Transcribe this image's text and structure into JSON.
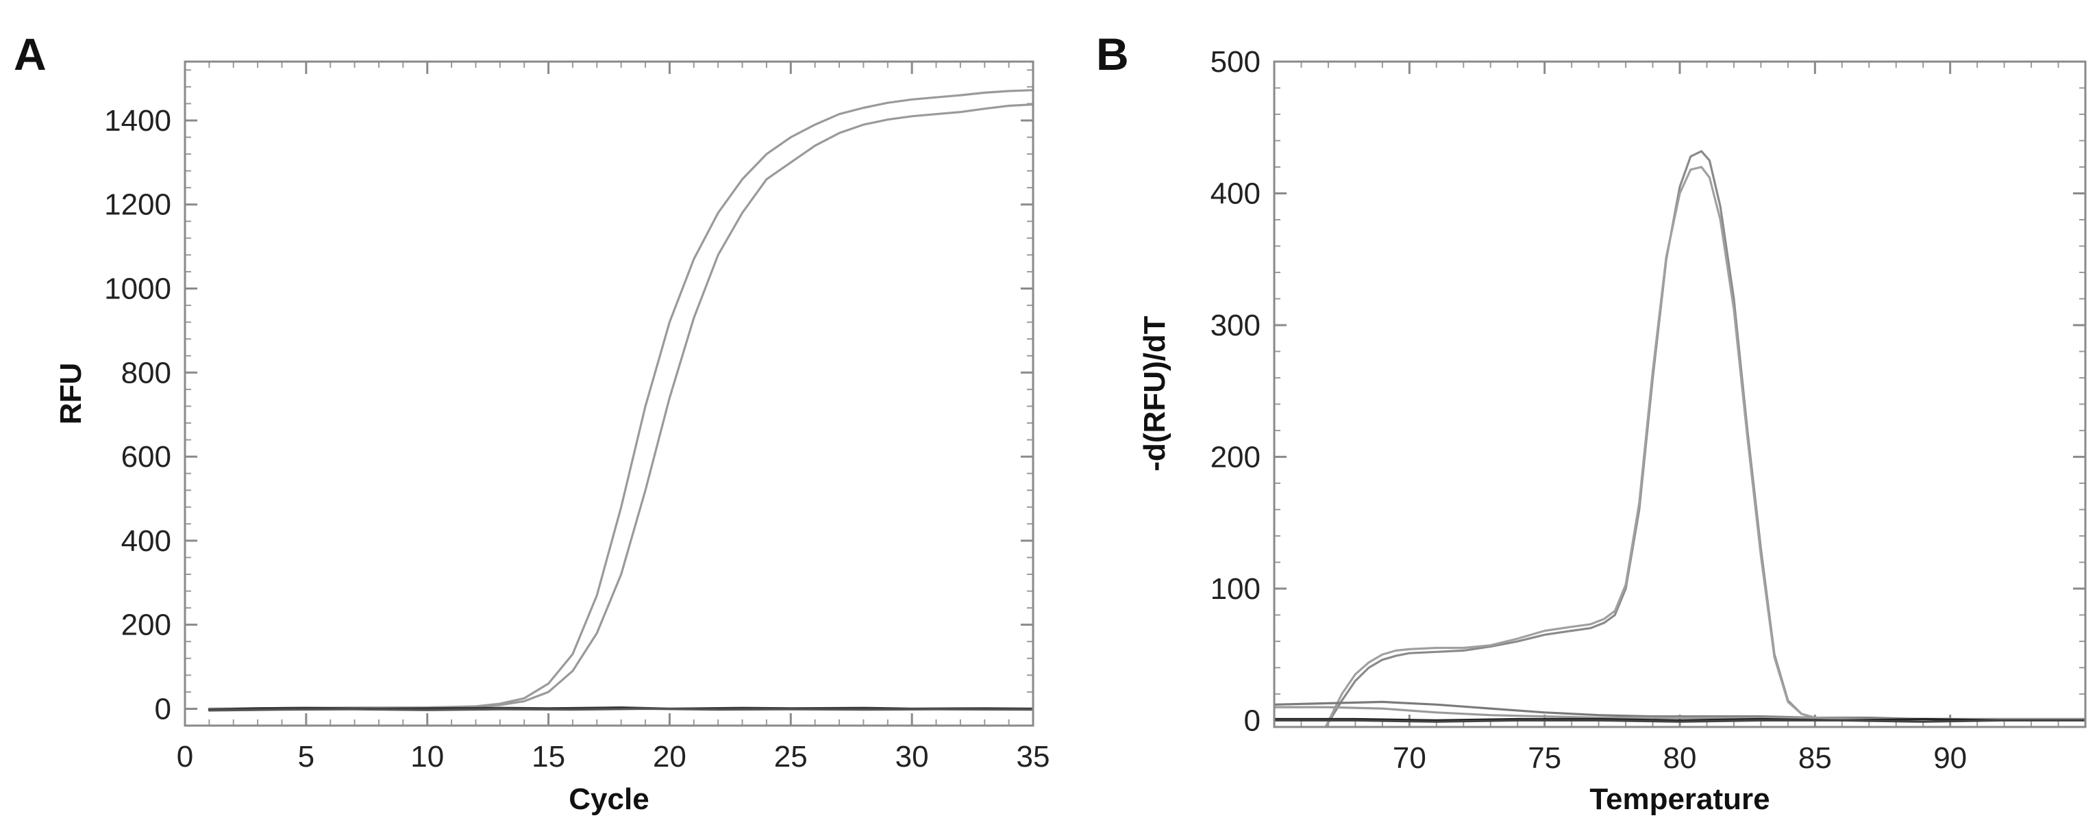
{
  "chart_data": [
    {
      "panel": "A",
      "type": "line",
      "xlabel": "Cycle",
      "ylabel": "RFU",
      "xlim": [
        0,
        35
      ],
      "ylim": [
        -40,
        1540
      ],
      "xticks": [
        0,
        5,
        10,
        15,
        20,
        25,
        30,
        35
      ],
      "yticks": [
        0,
        200,
        400,
        600,
        800,
        1000,
        1200,
        1400
      ],
      "grid": false,
      "series": [
        {
          "color": "#9a9a9a",
          "x": [
            1,
            5,
            10,
            12,
            13,
            14,
            15,
            16,
            17,
            18,
            19,
            20,
            21,
            22,
            23,
            24,
            25,
            26,
            27,
            28,
            29,
            30,
            31,
            32,
            33,
            34,
            35
          ],
          "y": [
            0,
            2,
            3,
            6,
            12,
            25,
            60,
            130,
            270,
            480,
            720,
            920,
            1070,
            1180,
            1260,
            1320,
            1360,
            1390,
            1415,
            1430,
            1442,
            1450,
            1455,
            1460,
            1466,
            1470,
            1472
          ]
        },
        {
          "color": "#9a9a9a",
          "x": [
            1,
            5,
            10,
            12,
            13,
            14,
            15,
            16,
            17,
            18,
            19,
            20,
            21,
            22,
            23,
            24,
            25,
            26,
            27,
            28,
            29,
            30,
            31,
            32,
            33,
            34,
            35
          ],
          "y": [
            0,
            2,
            3,
            5,
            9,
            18,
            40,
            90,
            180,
            320,
            520,
            740,
            930,
            1080,
            1180,
            1260,
            1300,
            1340,
            1370,
            1390,
            1402,
            1410,
            1415,
            1420,
            1428,
            1435,
            1438
          ]
        },
        {
          "color": "#333333",
          "x": [
            1,
            3,
            5,
            8,
            10,
            13,
            15,
            18,
            20,
            23,
            25,
            28,
            30,
            33,
            35
          ],
          "y": [
            -2,
            1,
            2,
            0,
            1,
            2,
            1,
            3,
            0,
            2,
            1,
            2,
            0,
            1,
            0
          ]
        },
        {
          "color": "#555555",
          "x": [
            1,
            4,
            7,
            10,
            13,
            16,
            19,
            22,
            25,
            28,
            31,
            35
          ],
          "y": [
            -4,
            -2,
            -1,
            -3,
            -1,
            -2,
            0,
            -2,
            -1,
            -2,
            -1,
            -2
          ]
        }
      ]
    },
    {
      "panel": "B",
      "type": "line",
      "xlabel": "Temperature",
      "ylabel": "-d(RFU)/dT",
      "xlim": [
        65,
        95
      ],
      "ylim": [
        -5,
        500
      ],
      "xticks": [
        70,
        75,
        80,
        85,
        90
      ],
      "yticks": [
        0,
        100,
        200,
        300,
        400,
        500
      ],
      "grid": false,
      "series": [
        {
          "color": "#8a8a8a",
          "x": [
            66.9,
            67.5,
            68.0,
            68.5,
            69.0,
            69.5,
            70.0,
            71.0,
            72.0,
            73.0,
            74.0,
            75.0,
            76.0,
            76.7,
            77.2,
            77.6,
            78.0,
            78.5,
            79.0,
            79.5,
            80.0,
            80.4,
            80.8,
            81.1,
            81.5,
            82.0,
            82.5,
            83.0,
            83.5,
            84.0,
            84.5,
            85.0,
            86.0,
            88.0,
            90.0,
            92.0,
            95.0
          ],
          "y": [
            -5,
            15,
            30,
            40,
            46,
            49,
            51,
            52,
            53,
            56,
            60,
            65,
            68,
            70,
            74,
            80,
            100,
            160,
            260,
            350,
            405,
            428,
            432,
            425,
            390,
            320,
            220,
            130,
            50,
            15,
            5,
            2,
            1,
            1,
            1,
            0,
            0
          ]
        },
        {
          "color": "#a0a0a0",
          "x": [
            66.9,
            67.5,
            68.0,
            68.5,
            69.0,
            69.5,
            70.0,
            71.0,
            72.0,
            73.0,
            74.0,
            75.0,
            76.0,
            76.7,
            77.2,
            77.6,
            78.0,
            78.5,
            79.0,
            79.5,
            80.0,
            80.4,
            80.8,
            81.1,
            81.5,
            82.0,
            82.5,
            83.0,
            83.5,
            84.0,
            84.5,
            85.0,
            86.0,
            88.0,
            90.0,
            92.0,
            95.0
          ],
          "y": [
            -5,
            20,
            35,
            44,
            50,
            53,
            54,
            55,
            55,
            57,
            62,
            68,
            71,
            73,
            77,
            83,
            103,
            165,
            265,
            352,
            400,
            418,
            420,
            412,
            380,
            312,
            215,
            125,
            48,
            14,
            5,
            2,
            1,
            1,
            1,
            0,
            0
          ]
        },
        {
          "color": "#7a7a7a",
          "x": [
            65,
            67,
            69,
            71,
            73,
            75,
            77,
            79,
            81,
            83,
            85,
            87,
            89,
            91,
            93,
            95
          ],
          "y": [
            12,
            13,
            14,
            12,
            9,
            6,
            4,
            3,
            3,
            3,
            2,
            2,
            1,
            1,
            1,
            1
          ]
        },
        {
          "color": "#9a9a9a",
          "x": [
            65,
            67,
            69,
            71,
            73,
            75,
            77,
            79,
            81,
            83,
            85,
            87,
            89,
            91,
            93,
            95
          ],
          "y": [
            10,
            10,
            9,
            6,
            4,
            3,
            2,
            2,
            2,
            2,
            2,
            1,
            1,
            1,
            1,
            1
          ]
        },
        {
          "color": "#222222",
          "x": [
            65,
            68,
            71,
            74,
            77,
            80,
            83,
            86,
            89,
            92,
            95
          ],
          "y": [
            1,
            1,
            0,
            1,
            1,
            0,
            1,
            0,
            1,
            0,
            0
          ]
        },
        {
          "color": "#444444",
          "x": [
            65,
            68,
            71,
            74,
            77,
            80,
            83,
            86,
            89,
            92,
            95
          ],
          "y": [
            0,
            0,
            -1,
            0,
            0,
            -1,
            0,
            0,
            -1,
            0,
            0
          ]
        }
      ]
    }
  ]
}
